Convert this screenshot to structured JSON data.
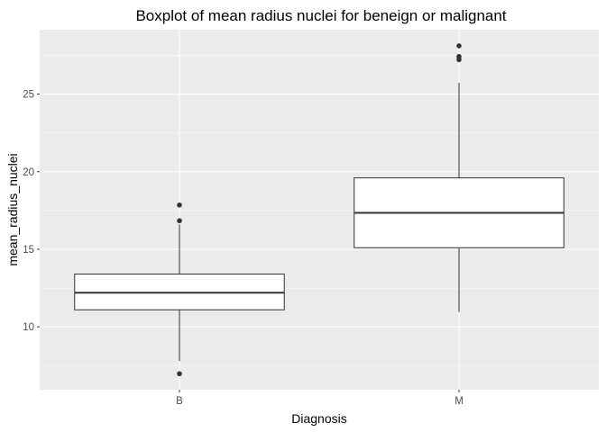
{
  "chart_data": {
    "type": "boxplot",
    "title": "Boxplot of mean radius nuclei for beneign or malignant",
    "xlabel": "Diagnosis",
    "ylabel": "mean_radius_nuclei",
    "categories": [
      "B",
      "M"
    ],
    "boxes": [
      {
        "category": "B",
        "whisker_low": 7.8,
        "q1": 11.1,
        "median": 12.2,
        "q3": 13.4,
        "whisker_high": 16.6,
        "outliers": [
          6.98,
          16.84,
          17.85
        ]
      },
      {
        "category": "M",
        "whisker_low": 10.95,
        "q1": 15.1,
        "median": 17.35,
        "q3": 19.6,
        "whisker_high": 25.73,
        "outliers": [
          27.22,
          27.42,
          28.11
        ]
      }
    ],
    "ylim": [
      5.95,
      29.15
    ],
    "yticks": [
      10,
      15,
      20,
      25
    ],
    "grid": true,
    "colors": {
      "panel": "#ebebeb",
      "grid": "#ffffff",
      "box_fill": "#ffffff",
      "box_line": "#333333",
      "text": "#4d4d4d"
    }
  }
}
